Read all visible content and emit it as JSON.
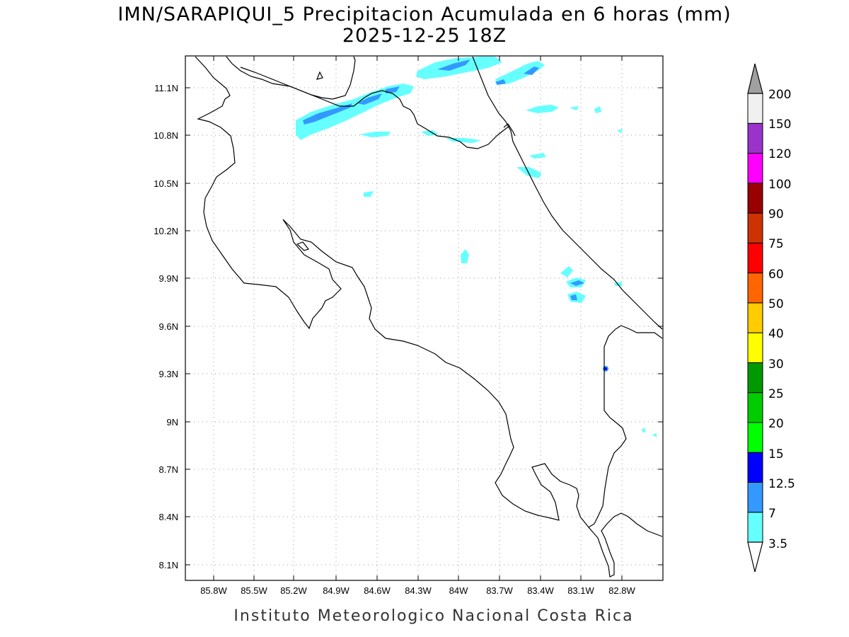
{
  "title": {
    "line1": "IMN/SARAPIQUI_5 Precipitacion Acumulada en 6 horas (mm)",
    "line2": "2025-12-25 18Z"
  },
  "footer": "Instituto Meteorologico Nacional Costa Rica",
  "map": {
    "lon_range": [
      -86.1,
      -82.6
    ],
    "lat_range": [
      8.0,
      11.3
    ],
    "grid": true
  },
  "axes": {
    "lat_ticks": [
      "11.1N",
      "10.8N",
      "10.5N",
      "10.2N",
      "9.9N",
      "9.6N",
      "9.3N",
      "9N",
      "8.7N",
      "8.4N",
      "8.1N"
    ],
    "lon_ticks": [
      "85.8W",
      "85.5W",
      "85.2W",
      "84.9W",
      "84.6W",
      "84.3W",
      "84W",
      "83.7W",
      "83.4W",
      "83.1W",
      "82.8W"
    ]
  },
  "colorbar": {
    "levels": [
      "3.5",
      "7",
      "12.5",
      "15",
      "20",
      "25",
      "30",
      "40",
      "50",
      "60",
      "75",
      "90",
      "100",
      "120",
      "150",
      "200"
    ],
    "colors": [
      "#66ffff",
      "#3399ff",
      "#0000ff",
      "#00ff00",
      "#00cc00",
      "#009900",
      "#ffff00",
      "#ffcc00",
      "#ff6600",
      "#ff0000",
      "#cc3300",
      "#990000",
      "#ff00ff",
      "#9933cc",
      "#f0f0f0"
    ],
    "top_arrow_color": "#a0a0a0",
    "bottom_arrow_color": "#ffffff"
  },
  "precip_colors": {
    "light": "#66ffff",
    "medium": "#3399ff",
    "heavy": "#0000ff"
  }
}
